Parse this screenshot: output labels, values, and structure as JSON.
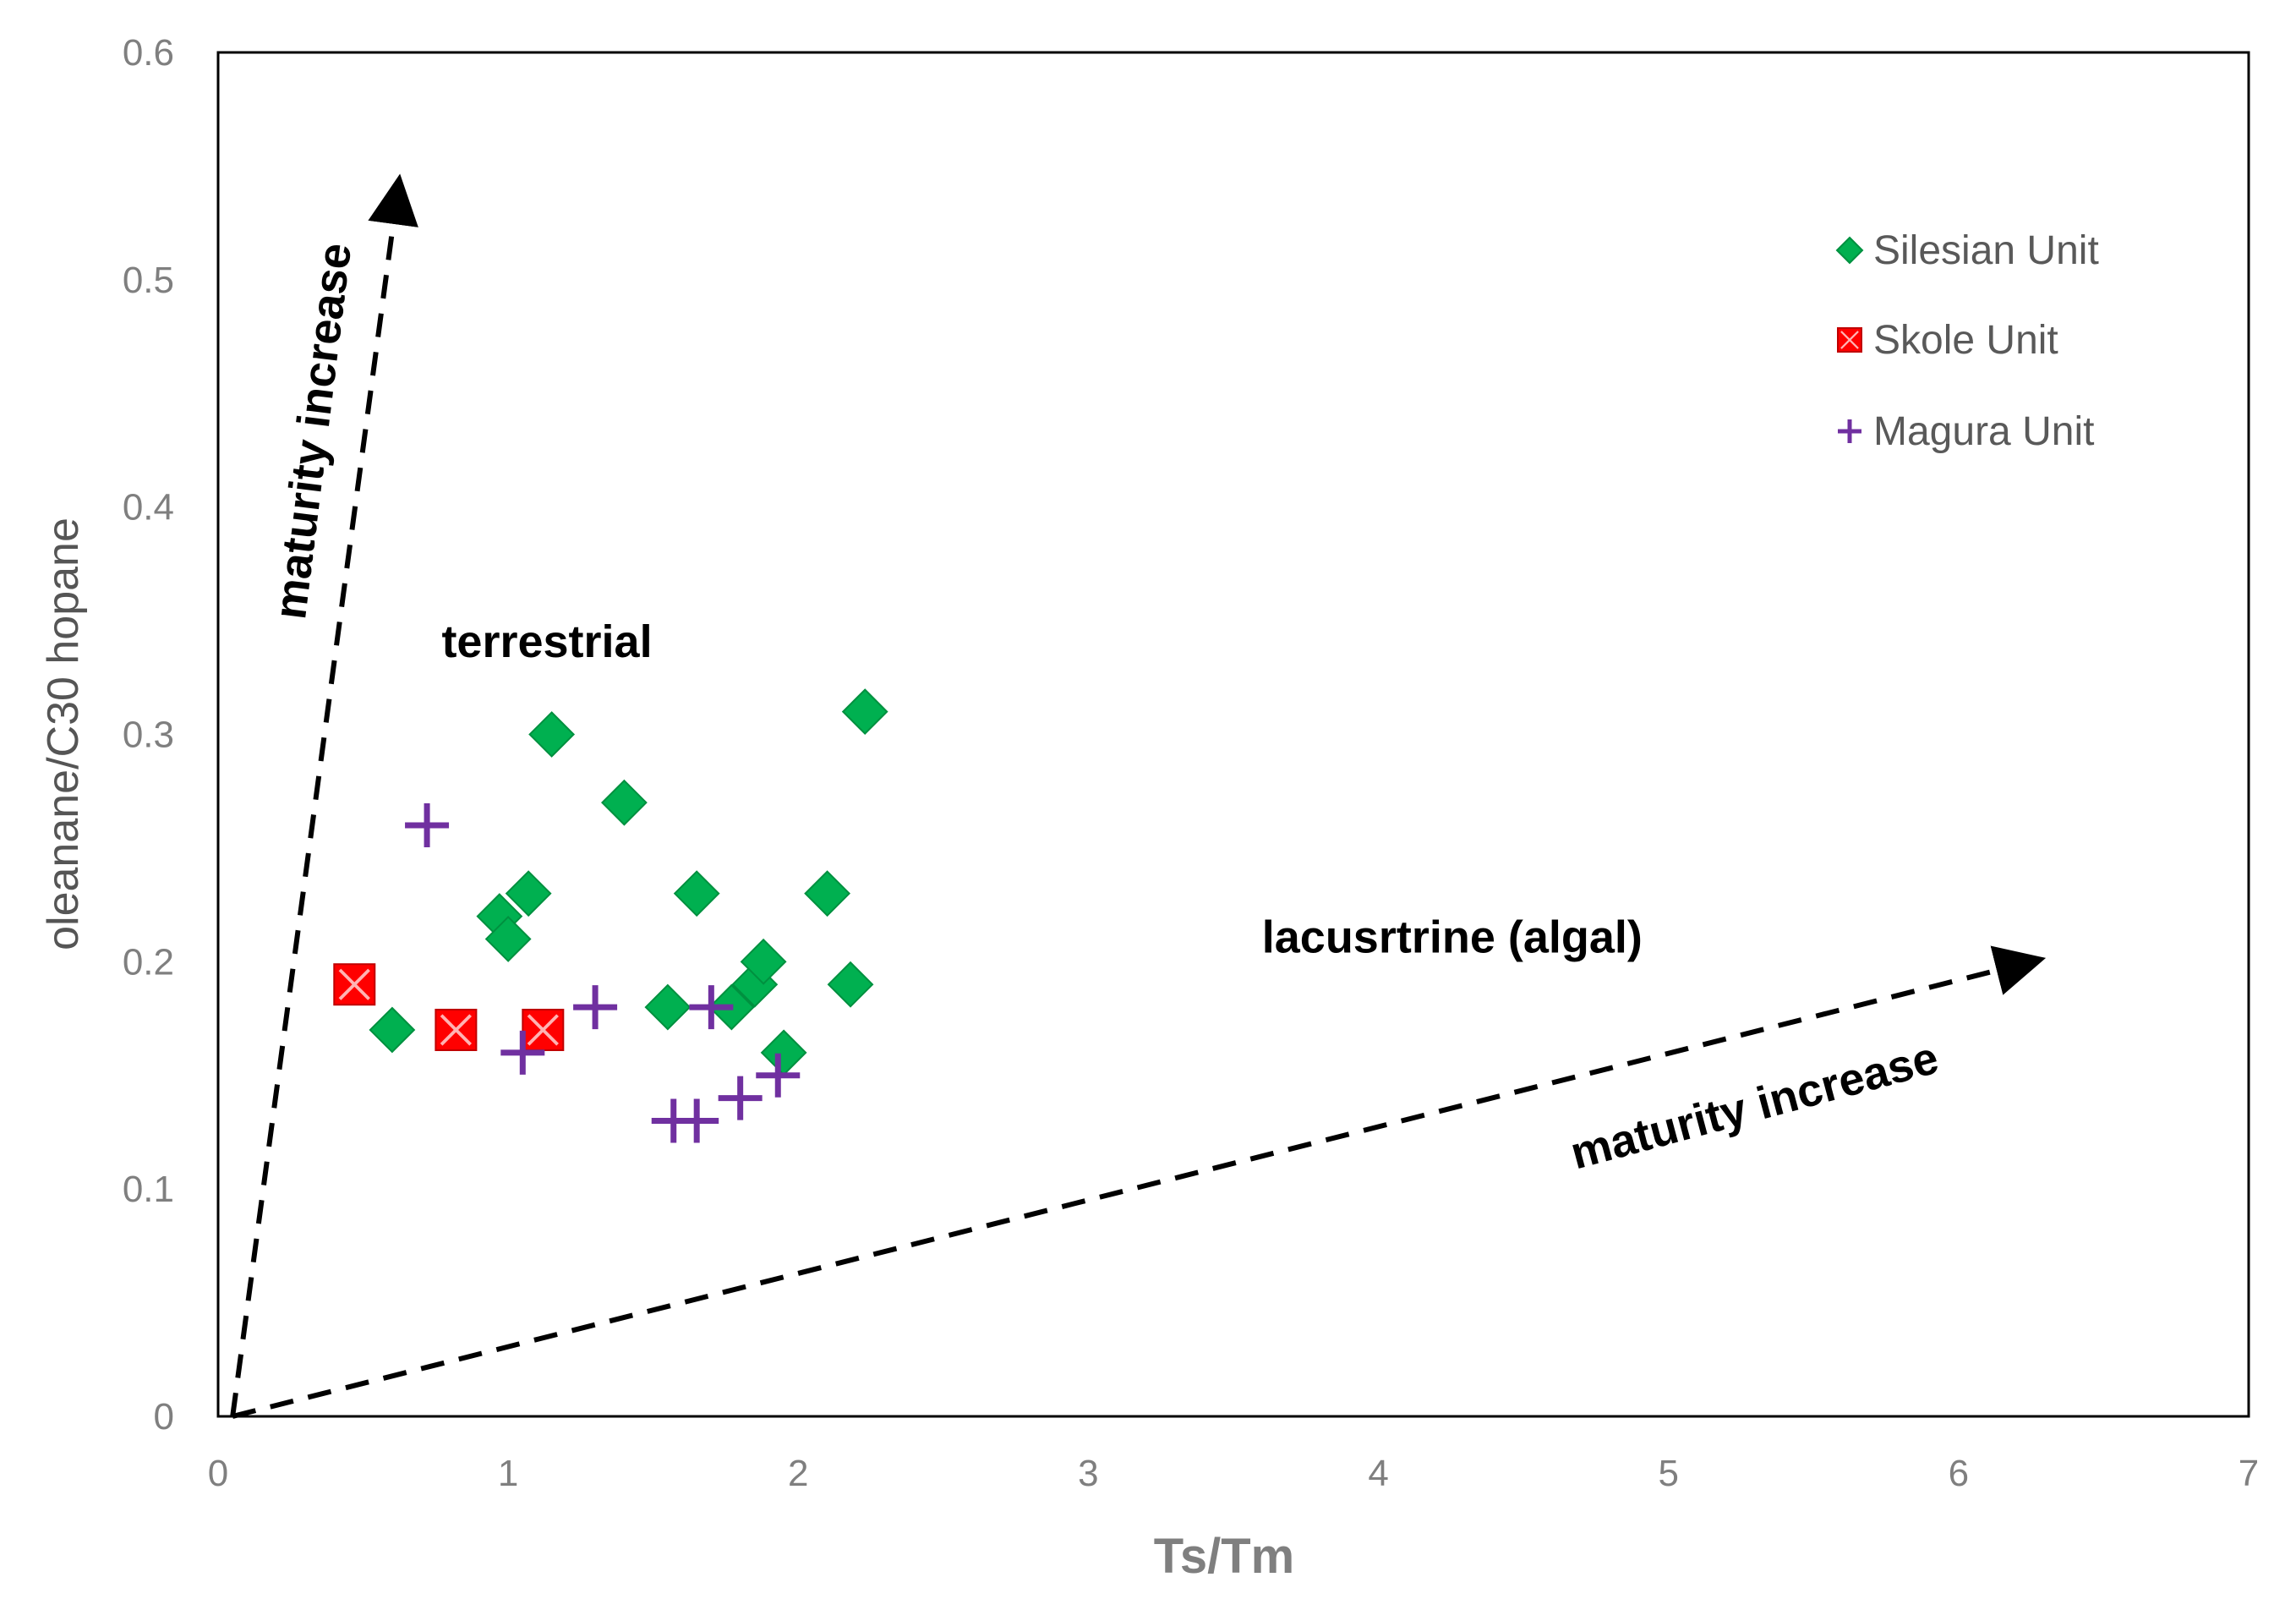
{
  "chart_data": {
    "type": "scatter",
    "title": "",
    "xlabel": "Ts/Tm",
    "ylabel": "oleanane/C30 hopane",
    "xlim": [
      0,
      7
    ],
    "ylim": [
      0,
      0.6
    ],
    "xticks": [
      0,
      1,
      2,
      3,
      4,
      5,
      6,
      7
    ],
    "yticks": [
      0,
      0.1,
      0.2,
      0.3,
      0.4,
      0.5,
      0.6
    ],
    "xtick_labels": [
      "0",
      "1",
      "2",
      "3",
      "4",
      "5",
      "6",
      "7"
    ],
    "ytick_labels": [
      "0",
      "0.1",
      "0.2",
      "0.3",
      "0.4",
      "0.5",
      "0.6"
    ],
    "grid": false,
    "legend_position": "top-right",
    "series": [
      {
        "name": "Silesian Unit",
        "marker": "diamond",
        "color": "#00b050",
        "points": [
          [
            0.6,
            0.17
          ],
          [
            0.97,
            0.22
          ],
          [
            1.0,
            0.21
          ],
          [
            1.07,
            0.23
          ],
          [
            1.15,
            0.3
          ],
          [
            1.4,
            0.27
          ],
          [
            1.55,
            0.18
          ],
          [
            1.65,
            0.23
          ],
          [
            1.77,
            0.18
          ],
          [
            1.85,
            0.19
          ],
          [
            1.88,
            0.2
          ],
          [
            1.95,
            0.16
          ],
          [
            2.1,
            0.23
          ],
          [
            2.18,
            0.19
          ],
          [
            2.23,
            0.31
          ]
        ]
      },
      {
        "name": "Skole Unit",
        "marker": "square-x",
        "color": "#ff0000",
        "points": [
          [
            0.47,
            0.19
          ],
          [
            0.82,
            0.17
          ],
          [
            1.12,
            0.17
          ]
        ]
      },
      {
        "name": "Magura Unit",
        "marker": "plus",
        "color": "#7030a0",
        "points": [
          [
            0.72,
            0.26
          ],
          [
            1.05,
            0.16
          ],
          [
            1.3,
            0.18
          ],
          [
            1.57,
            0.13
          ],
          [
            1.65,
            0.13
          ],
          [
            1.7,
            0.18
          ],
          [
            1.8,
            0.14
          ],
          [
            1.93,
            0.15
          ]
        ]
      }
    ],
    "annotations": [
      {
        "text": "terrestrial",
        "x": 1.6,
        "y": 0.34
      },
      {
        "text": "lacusrtrine  (algal)",
        "x": 4.4,
        "y": 0.21
      },
      {
        "text": "maturity increase",
        "arrow_from": [
          0.05,
          0
        ],
        "arrow_to": [
          0.62,
          0.54
        ],
        "label_along": "vertical-arrow"
      },
      {
        "text": "maturity increase",
        "arrow_from": [
          0.05,
          0
        ],
        "arrow_to": [
          6.25,
          0.2
        ],
        "label_along": "horizontal-arrow"
      }
    ]
  }
}
